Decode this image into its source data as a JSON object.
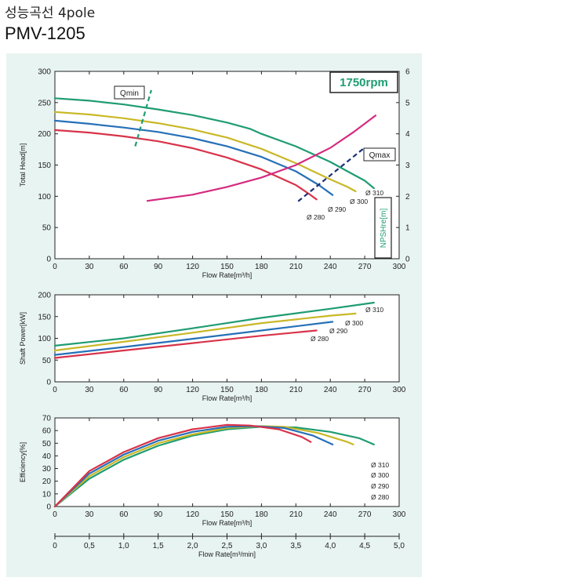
{
  "header": {
    "title": "성능곡선 4pole",
    "model": "PMV-1205"
  },
  "colors": {
    "background": "#e8f4f1",
    "d310": "#1f9c72",
    "d300": "#c9b827",
    "d290": "#2670b8",
    "d280": "#d8334a",
    "npsh": "#d42b7f",
    "qline": "#1c2f7a",
    "rpm_text": "#1f9c72"
  },
  "chart_data": [
    {
      "type": "line",
      "id": "head",
      "ylabel": "Total Head[m]",
      "xlabel": "Flow Rate[m³/h]",
      "xlim": [
        0,
        300
      ],
      "ylim": [
        0,
        300
      ],
      "xticks": [
        "0",
        "30",
        "60",
        "90",
        "120",
        "150",
        "180",
        "210",
        "240",
        "270",
        "300"
      ],
      "yticks": [
        "0",
        "50",
        "100",
        "150",
        "200",
        "250",
        "300"
      ],
      "y2label": "NPSHre[m]",
      "y2lim": [
        0,
        6
      ],
      "y2ticks": [
        "0",
        "1",
        "2",
        "3",
        "4",
        "5",
        "6"
      ],
      "speed_label": "1750rpm",
      "series": [
        {
          "name": "Ø 310",
          "color_key": "d310",
          "x": [
            0,
            30,
            60,
            90,
            120,
            150,
            170,
            180,
            210,
            240,
            255,
            270,
            278
          ],
          "y": [
            257,
            253,
            247,
            239,
            230,
            218,
            208,
            200,
            180,
            155,
            140,
            125,
            113
          ]
        },
        {
          "name": "Ø 300",
          "color_key": "d300",
          "x": [
            0,
            30,
            60,
            90,
            120,
            150,
            180,
            210,
            240,
            255,
            262
          ],
          "y": [
            235,
            231,
            225,
            217,
            207,
            194,
            176,
            153,
            127,
            115,
            108
          ]
        },
        {
          "name": "Ø 290",
          "color_key": "d290",
          "x": [
            0,
            30,
            60,
            90,
            120,
            150,
            180,
            210,
            230,
            242
          ],
          "y": [
            221,
            216,
            210,
            203,
            193,
            180,
            163,
            140,
            118,
            102
          ]
        },
        {
          "name": "Ø 280",
          "color_key": "d280",
          "x": [
            0,
            30,
            60,
            90,
            120,
            150,
            180,
            210,
            222,
            228
          ],
          "y": [
            206,
            202,
            196,
            188,
            177,
            162,
            143,
            118,
            103,
            95
          ]
        }
      ],
      "npsh": {
        "x": [
          80,
          120,
          150,
          180,
          210,
          240,
          260,
          280
        ],
        "y": [
          1.85,
          2.05,
          2.3,
          2.6,
          3.0,
          3.55,
          4.05,
          4.6
        ]
      },
      "qmin": {
        "label": "Qmin",
        "x": [
          70,
          84
        ],
        "y": [
          180,
          270
        ]
      },
      "qmax": {
        "label": "Qmax",
        "x": [
          212,
          270
        ],
        "y": [
          92,
          178
        ]
      },
      "curve_labels": [
        "Ø 310",
        "Ø 300",
        "Ø 290",
        "Ø 280"
      ]
    },
    {
      "type": "line",
      "id": "power",
      "ylabel": "Shaft Power[kW]",
      "xlabel": "Flow Rate[m³/h]",
      "xlim": [
        0,
        300
      ],
      "ylim": [
        0,
        200
      ],
      "xticks": [
        "0",
        "30",
        "60",
        "90",
        "120",
        "150",
        "180",
        "210",
        "240",
        "270",
        "300"
      ],
      "yticks": [
        "0",
        "50",
        "100",
        "150",
        "200"
      ],
      "series": [
        {
          "name": "Ø 310",
          "color_key": "d310",
          "x": [
            0,
            60,
            120,
            180,
            240,
            278
          ],
          "y": [
            83,
            100,
            123,
            147,
            168,
            182
          ]
        },
        {
          "name": "Ø 300",
          "color_key": "d300",
          "x": [
            0,
            60,
            120,
            180,
            240,
            262
          ],
          "y": [
            72,
            92,
            113,
            135,
            152,
            157
          ]
        },
        {
          "name": "Ø 290",
          "color_key": "d290",
          "x": [
            0,
            60,
            120,
            180,
            242
          ],
          "y": [
            62,
            80,
            99,
            118,
            138
          ]
        },
        {
          "name": "Ø 280",
          "color_key": "d280",
          "x": [
            0,
            60,
            120,
            180,
            228
          ],
          "y": [
            55,
            72,
            89,
            106,
            118
          ]
        }
      ],
      "curve_labels": [
        "Ø 310",
        "Ø 300",
        "Ø 290",
        "Ø 280"
      ]
    },
    {
      "type": "line",
      "id": "efficiency",
      "ylabel": "Efficiency[%]",
      "xlabel": "Flow Rate[m³/h]",
      "xlim": [
        0,
        300
      ],
      "ylim": [
        0,
        70
      ],
      "xticks": [
        "0",
        "30",
        "60",
        "90",
        "120",
        "150",
        "180",
        "210",
        "240",
        "270",
        "300"
      ],
      "yticks": [
        "0",
        "10",
        "20",
        "30",
        "40",
        "50",
        "60",
        "70"
      ],
      "series": [
        {
          "name": "Ø 310",
          "color_key": "d310",
          "x": [
            0,
            30,
            60,
            90,
            120,
            150,
            180,
            210,
            240,
            265,
            278
          ],
          "y": [
            0,
            22,
            37,
            48,
            56,
            61,
            63,
            62.5,
            59,
            54,
            49
          ]
        },
        {
          "name": "Ø 300",
          "color_key": "d300",
          "x": [
            0,
            30,
            60,
            90,
            120,
            150,
            180,
            200,
            230,
            255,
            260
          ],
          "y": [
            0,
            24,
            39,
            50,
            57,
            62,
            63.5,
            63,
            58,
            51,
            49
          ]
        },
        {
          "name": "Ø 290",
          "color_key": "d290",
          "x": [
            0,
            30,
            60,
            90,
            120,
            150,
            175,
            200,
            225,
            242
          ],
          "y": [
            0,
            26,
            41,
            52,
            59,
            63,
            63.5,
            62,
            56,
            49
          ]
        },
        {
          "name": "Ø 280",
          "color_key": "d280",
          "x": [
            0,
            30,
            60,
            90,
            120,
            150,
            170,
            195,
            215,
            223
          ],
          "y": [
            0,
            28,
            43,
            54,
            61,
            64.5,
            64,
            61,
            55,
            51
          ]
        }
      ],
      "curve_labels": [
        "Ø 310",
        "Ø 300",
        "Ø 290",
        "Ø 280"
      ]
    },
    {
      "type": "axis",
      "id": "flow-min",
      "xlabel": "Flow Rate[m³/min]",
      "xlim": [
        0,
        5
      ],
      "xticks": [
        "0",
        "0,5",
        "1,0",
        "1,5",
        "2,0",
        "2,5",
        "3,0",
        "3,5",
        "4,0",
        "4,5",
        "5,0"
      ]
    }
  ]
}
